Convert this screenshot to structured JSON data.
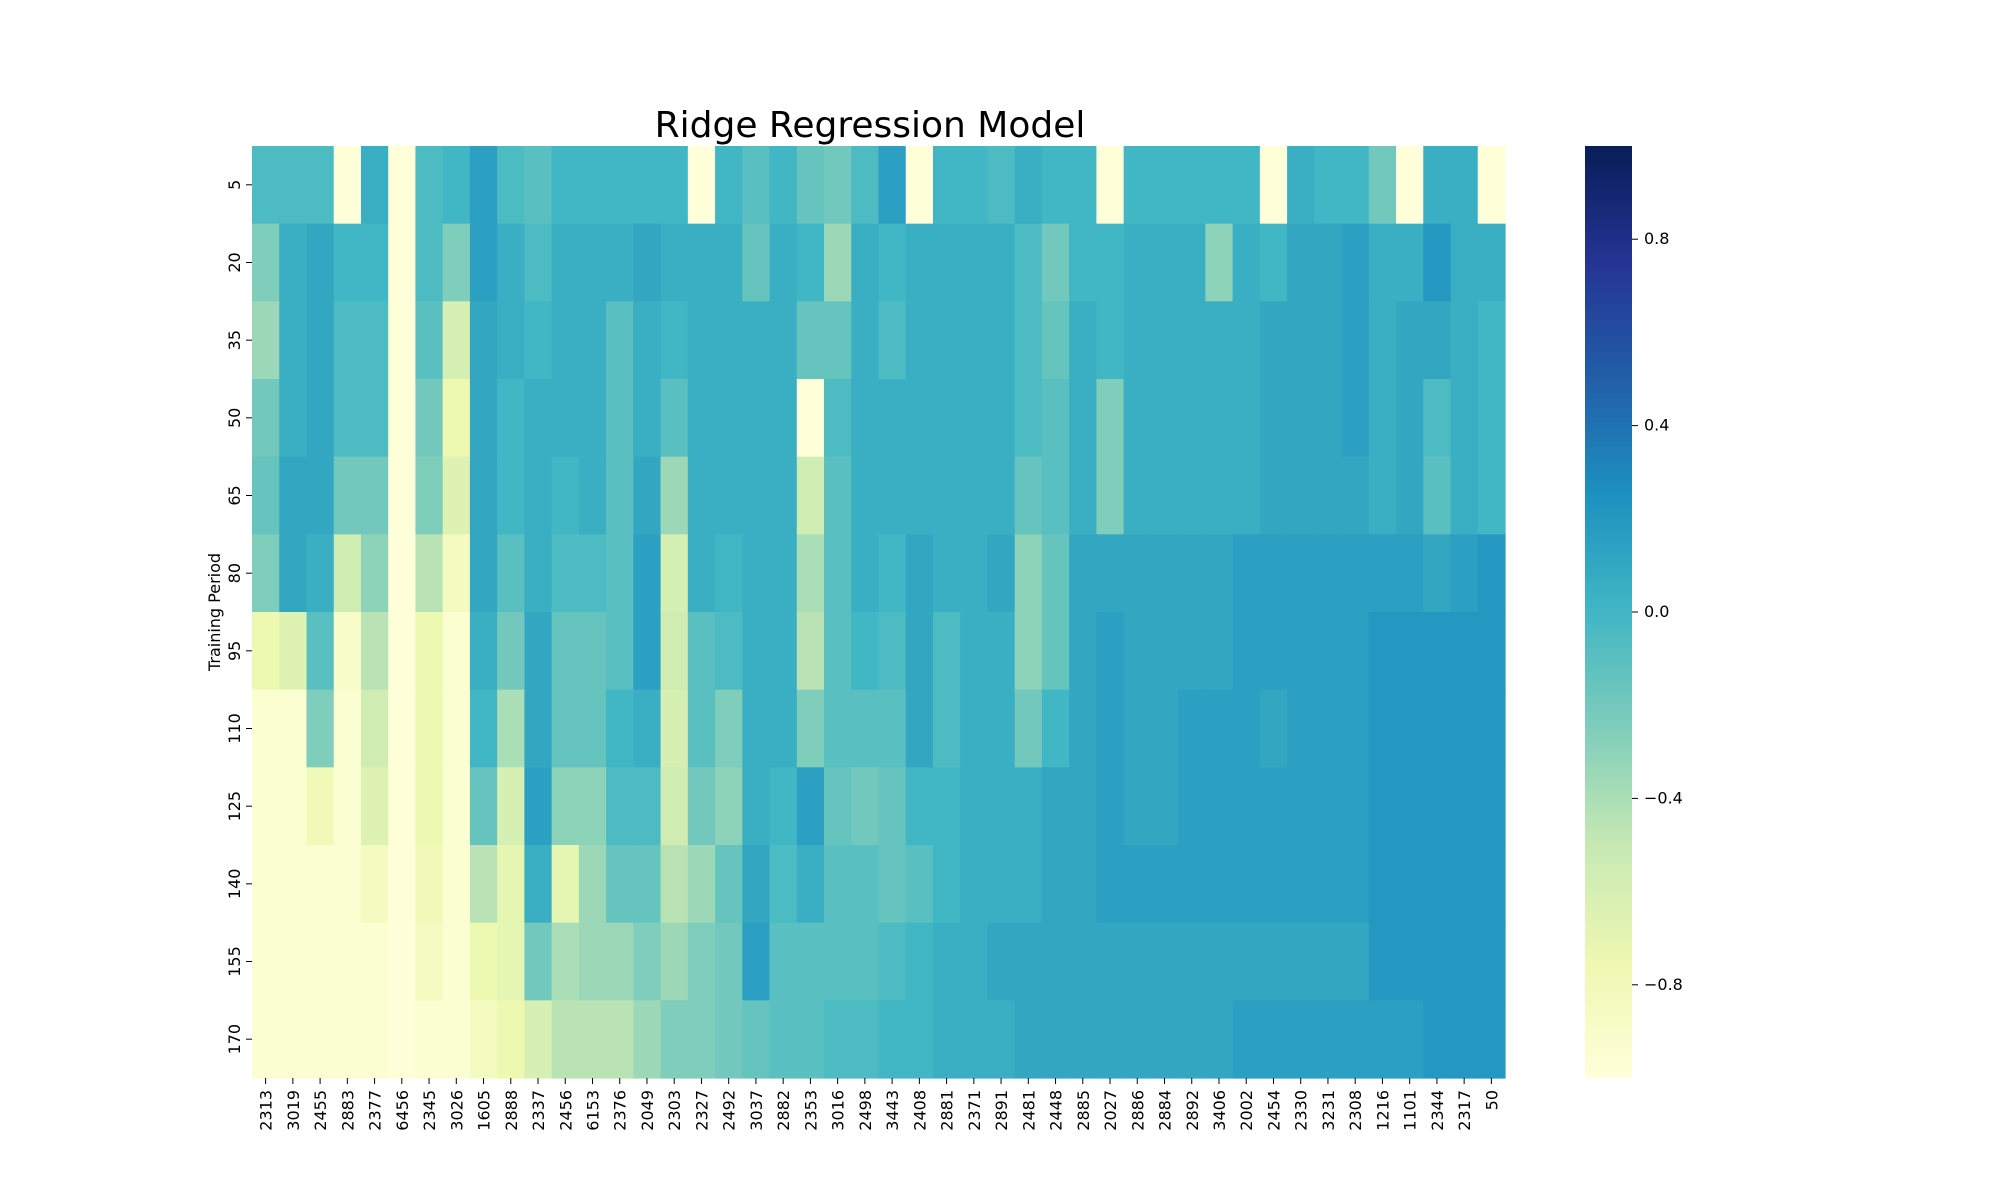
{
  "chart_data": {
    "type": "heatmap",
    "title": "Ridge Regression Model",
    "xlabel": "",
    "ylabel": "Training Period",
    "colormap": "YlGnBu",
    "vmin": -1.0,
    "vmax": 1.0,
    "colorbar_ticks": [
      0.8,
      0.4,
      0.0,
      -0.4,
      -0.8
    ],
    "colorbar_tick_labels": [
      "0.8",
      "0.4",
      "0.0",
      "−0.4",
      "−0.8"
    ],
    "x_categories": [
      "2313",
      "3019",
      "2455",
      "2883",
      "2377",
      "6456",
      "2345",
      "3026",
      "1605",
      "2888",
      "2337",
      "2456",
      "6153",
      "2376",
      "2049",
      "2303",
      "2327",
      "2492",
      "3037",
      "2882",
      "2353",
      "3016",
      "2498",
      "3443",
      "2408",
      "2881",
      "2371",
      "2891",
      "2481",
      "2448",
      "2885",
      "2027",
      "2886",
      "2884",
      "2892",
      "3406",
      "2002",
      "2454",
      "2330",
      "3231",
      "2308",
      "1216",
      "1101",
      "2344",
      "2317",
      "50"
    ],
    "y_categories": [
      "5",
      "20",
      "35",
      "50",
      "65",
      "80",
      "95",
      "110",
      "125",
      "140",
      "155",
      "170"
    ],
    "values": [
      [
        -0.05,
        -0.05,
        -0.05,
        -1,
        0.05,
        -1,
        -0.05,
        0.0,
        0.15,
        -0.05,
        -0.1,
        0.0,
        0.0,
        0.0,
        0.0,
        0.0,
        -1,
        0.0,
        -0.1,
        0.0,
        -0.15,
        -0.2,
        -0.05,
        0.15,
        -1,
        0.0,
        0.0,
        -0.05,
        0.05,
        0.0,
        0.0,
        -1,
        0.0,
        0.0,
        0.0,
        0.0,
        0.0,
        -1,
        0.05,
        0.0,
        0.0,
        -0.2,
        -1,
        0.05,
        0.05,
        -1
      ],
      [
        -0.25,
        0.05,
        0.1,
        0.0,
        0.0,
        -1,
        -0.05,
        -0.25,
        0.15,
        0.05,
        -0.05,
        0.05,
        0.05,
        0.05,
        0.1,
        0.05,
        0.05,
        0.05,
        -0.15,
        0.05,
        0.0,
        -0.35,
        0.05,
        0.0,
        0.05,
        0.05,
        0.05,
        0.05,
        -0.05,
        -0.2,
        0.0,
        0.0,
        0.05,
        0.05,
        0.05,
        -0.3,
        0.05,
        0.0,
        0.1,
        0.1,
        0.15,
        0.05,
        0.05,
        0.2,
        0.05,
        0.05
      ],
      [
        -0.35,
        0.05,
        0.1,
        -0.05,
        -0.05,
        -1,
        -0.1,
        -0.6,
        0.1,
        0.05,
        0.0,
        0.05,
        0.05,
        -0.1,
        0.05,
        0.0,
        0.05,
        0.05,
        0.05,
        0.05,
        -0.15,
        -0.15,
        0.05,
        -0.05,
        0.05,
        0.05,
        0.05,
        0.05,
        -0.05,
        -0.15,
        0.05,
        0.0,
        0.05,
        0.05,
        0.05,
        0.05,
        0.05,
        0.1,
        0.1,
        0.1,
        0.15,
        0.05,
        0.1,
        0.1,
        0.05,
        0.0
      ],
      [
        -0.2,
        0.05,
        0.1,
        -0.05,
        -0.05,
        -1,
        -0.2,
        -0.75,
        0.1,
        0.0,
        0.05,
        0.05,
        0.05,
        -0.1,
        0.05,
        -0.1,
        0.05,
        0.05,
        0.05,
        0.05,
        -1,
        -0.05,
        0.05,
        0.05,
        0.05,
        0.05,
        0.05,
        0.05,
        -0.05,
        -0.1,
        0.05,
        -0.25,
        0.05,
        0.05,
        0.05,
        0.05,
        0.05,
        0.1,
        0.1,
        0.1,
        0.15,
        0.05,
        0.1,
        -0.05,
        0.05,
        0.0
      ],
      [
        -0.15,
        0.1,
        0.1,
        -0.2,
        -0.2,
        -1,
        -0.25,
        -0.65,
        0.1,
        0.0,
        0.05,
        0.0,
        0.05,
        -0.1,
        0.1,
        -0.35,
        0.05,
        0.05,
        0.05,
        0.05,
        -0.55,
        -0.1,
        0.05,
        0.05,
        0.05,
        0.05,
        0.05,
        0.05,
        -0.15,
        -0.1,
        0.05,
        -0.25,
        0.05,
        0.05,
        0.05,
        0.05,
        0.05,
        0.1,
        0.1,
        0.1,
        0.1,
        0.05,
        0.1,
        -0.1,
        0.05,
        0.0
      ],
      [
        -0.25,
        0.1,
        0.05,
        -0.55,
        -0.3,
        -1,
        -0.45,
        -0.85,
        0.1,
        -0.1,
        0.05,
        -0.05,
        -0.05,
        -0.1,
        0.15,
        -0.6,
        0.05,
        0.0,
        0.05,
        0.05,
        -0.4,
        -0.1,
        0.05,
        0.0,
        0.1,
        0.05,
        0.05,
        0.1,
        -0.3,
        -0.15,
        0.1,
        0.1,
        0.1,
        0.1,
        0.1,
        0.1,
        0.15,
        0.15,
        0.15,
        0.15,
        0.15,
        0.15,
        0.15,
        0.1,
        0.15,
        0.2
      ],
      [
        -0.75,
        -0.65,
        -0.1,
        -0.9,
        -0.45,
        -1,
        -0.75,
        -0.95,
        0.05,
        -0.2,
        0.1,
        -0.15,
        -0.15,
        -0.1,
        0.15,
        -0.55,
        -0.1,
        -0.05,
        0.05,
        0.05,
        -0.45,
        -0.1,
        0.0,
        -0.05,
        0.1,
        -0.05,
        0.05,
        0.05,
        -0.3,
        -0.15,
        0.1,
        0.15,
        0.1,
        0.1,
        0.1,
        0.1,
        0.15,
        0.15,
        0.15,
        0.15,
        0.15,
        0.2,
        0.2,
        0.2,
        0.2,
        0.2
      ],
      [
        -0.95,
        -0.95,
        -0.25,
        -0.95,
        -0.55,
        -1,
        -0.75,
        -0.95,
        0.0,
        -0.4,
        0.1,
        -0.15,
        -0.15,
        0.0,
        0.05,
        -0.6,
        -0.1,
        -0.25,
        0.05,
        0.05,
        -0.25,
        -0.1,
        -0.1,
        -0.1,
        0.1,
        -0.05,
        0.05,
        0.05,
        -0.2,
        0.0,
        0.1,
        0.15,
        0.1,
        0.1,
        0.15,
        0.15,
        0.15,
        0.1,
        0.15,
        0.15,
        0.15,
        0.2,
        0.2,
        0.2,
        0.2,
        0.2
      ],
      [
        -0.95,
        -0.95,
        -0.8,
        -0.95,
        -0.65,
        -1,
        -0.75,
        -0.95,
        -0.15,
        -0.6,
        0.15,
        -0.3,
        -0.3,
        -0.05,
        -0.05,
        -0.55,
        -0.2,
        -0.3,
        0.05,
        0.0,
        0.15,
        -0.15,
        -0.2,
        -0.15,
        0.0,
        0.0,
        0.05,
        0.05,
        0.05,
        0.1,
        0.1,
        0.15,
        0.1,
        0.1,
        0.15,
        0.15,
        0.15,
        0.15,
        0.15,
        0.15,
        0.15,
        0.2,
        0.2,
        0.2,
        0.2,
        0.2
      ],
      [
        -0.95,
        -0.95,
        -0.95,
        -0.95,
        -0.85,
        -1,
        -0.8,
        -0.95,
        -0.45,
        -0.7,
        0.05,
        -0.7,
        -0.35,
        -0.15,
        -0.15,
        -0.45,
        -0.35,
        -0.15,
        0.1,
        -0.05,
        0.05,
        -0.1,
        -0.1,
        -0.15,
        -0.1,
        0.0,
        0.05,
        0.05,
        0.05,
        0.1,
        0.1,
        0.15,
        0.15,
        0.15,
        0.15,
        0.15,
        0.15,
        0.15,
        0.15,
        0.15,
        0.15,
        0.2,
        0.2,
        0.2,
        0.2,
        0.2
      ],
      [
        -0.95,
        -0.95,
        -0.95,
        -0.95,
        -0.95,
        -1,
        -0.85,
        -0.95,
        -0.75,
        -0.7,
        -0.2,
        -0.4,
        -0.35,
        -0.35,
        -0.25,
        -0.35,
        -0.25,
        -0.2,
        0.15,
        -0.1,
        -0.1,
        -0.1,
        -0.1,
        -0.05,
        0.0,
        0.05,
        0.05,
        0.1,
        0.1,
        0.1,
        0.1,
        0.1,
        0.1,
        0.1,
        0.1,
        0.1,
        0.1,
        0.1,
        0.1,
        0.1,
        0.1,
        0.2,
        0.2,
        0.2,
        0.2,
        0.2
      ],
      [
        -0.95,
        -0.95,
        -0.95,
        -0.95,
        -0.95,
        -1,
        -0.95,
        -0.95,
        -0.85,
        -0.75,
        -0.6,
        -0.45,
        -0.45,
        -0.45,
        -0.35,
        -0.25,
        -0.25,
        -0.2,
        -0.15,
        -0.1,
        -0.1,
        -0.05,
        -0.05,
        0.0,
        0.0,
        0.05,
        0.05,
        0.05,
        0.1,
        0.1,
        0.1,
        0.1,
        0.1,
        0.1,
        0.1,
        0.1,
        0.15,
        0.15,
        0.15,
        0.15,
        0.15,
        0.15,
        0.15,
        0.2,
        0.2,
        0.2
      ]
    ]
  }
}
